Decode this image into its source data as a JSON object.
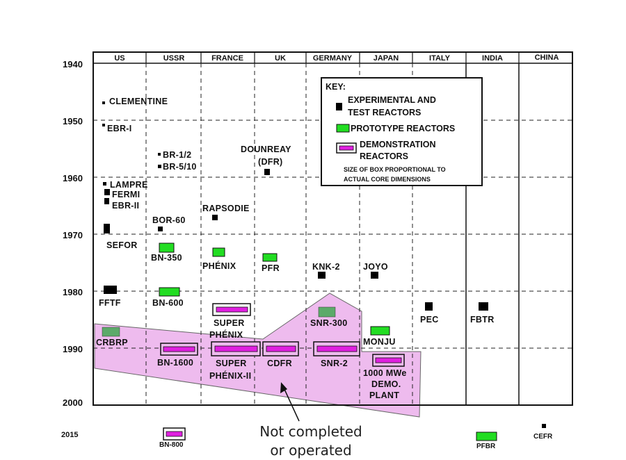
{
  "columns": [
    "US",
    "USSR",
    "FRANCE",
    "UK",
    "GERMANY",
    "JAPAN",
    "ITALY",
    "INDIA",
    "CHINA"
  ],
  "years": [
    "1940",
    "1950",
    "1960",
    "1970",
    "1980",
    "1990",
    "2000"
  ],
  "year_2015": "2015",
  "key": {
    "title": "KEY:",
    "experimental_1": "EXPERIMENTAL AND",
    "experimental_2": "TEST REACTORS",
    "prototype": "PROTOTYPE REACTORS",
    "demo_1": "DEMONSTRATION",
    "demo_2": "REACTORS",
    "size_1": "SIZE OF BOX PROPORTIONAL TO",
    "size_2": "ACTUAL CORE DIMENSIONS"
  },
  "annotation": {
    "line1": "Not completed",
    "line2": "or operated"
  },
  "colors": {
    "experimental": "#000000",
    "prototype": "#22dd22",
    "prototype_gray": "#5caa6a",
    "demonstration": "#e020e0",
    "region_fill": "#eebbee",
    "region_stroke": "#666666"
  },
  "reactors": [
    {
      "name": "CLEMENTINE",
      "country": "US",
      "year": 1946,
      "type": "experimental"
    },
    {
      "name": "EBR-I",
      "country": "US",
      "year": 1951,
      "type": "experimental"
    },
    {
      "name": "LAMPRE",
      "country": "US",
      "year": 1961,
      "type": "experimental"
    },
    {
      "name": "FERMI",
      "country": "US",
      "year": 1963,
      "type": "experimental"
    },
    {
      "name": "EBR-II",
      "country": "US",
      "year": 1964,
      "type": "experimental"
    },
    {
      "name": "SEFOR",
      "country": "US",
      "year": 1969,
      "type": "experimental"
    },
    {
      "name": "FFTF",
      "country": "US",
      "year": 1980,
      "type": "experimental"
    },
    {
      "name": "CRBRP",
      "country": "US",
      "year": 1987,
      "type": "prototype",
      "completed": false
    },
    {
      "name": "BR-1/2",
      "country": "USSR",
      "year": 1956,
      "type": "experimental"
    },
    {
      "name": "BR-5/10",
      "country": "USSR",
      "year": 1958,
      "type": "experimental"
    },
    {
      "name": "BOR-60",
      "country": "USSR",
      "year": 1969,
      "type": "experimental"
    },
    {
      "name": "BN-350",
      "country": "USSR",
      "year": 1972,
      "type": "prototype"
    },
    {
      "name": "BN-600",
      "country": "USSR",
      "year": 1980,
      "type": "prototype"
    },
    {
      "name": "BN-1600",
      "country": "USSR",
      "year": 1990,
      "type": "demonstration",
      "completed": false
    },
    {
      "name": "BN-800",
      "country": "USSR",
      "year": 2015,
      "type": "demonstration"
    },
    {
      "name": "RAPSODIE",
      "country": "FRANCE",
      "year": 1967,
      "type": "experimental"
    },
    {
      "name": "PHÉNIX",
      "country": "FRANCE",
      "year": 1973,
      "type": "prototype"
    },
    {
      "name": "SUPER PHÉNIX",
      "country": "FRANCE",
      "year": 1983,
      "type": "demonstration"
    },
    {
      "name": "SUPER PHÉNIX-II",
      "country": "FRANCE",
      "year": 1990,
      "type": "demonstration",
      "completed": false
    },
    {
      "name": "DOUNREAY (DFR)",
      "country": "UK",
      "year": 1959,
      "type": "experimental"
    },
    {
      "name": "PFR",
      "country": "UK",
      "year": 1974,
      "type": "prototype"
    },
    {
      "name": "CDFR",
      "country": "UK",
      "year": 1990,
      "type": "demonstration",
      "completed": false
    },
    {
      "name": "KNK-2",
      "country": "GERMANY",
      "year": 1977,
      "type": "experimental"
    },
    {
      "name": "SNR-300",
      "country": "GERMANY",
      "year": 1984,
      "type": "prototype",
      "completed": false
    },
    {
      "name": "SNR-2",
      "country": "GERMANY",
      "year": 1990,
      "type": "demonstration",
      "completed": false
    },
    {
      "name": "JOYO",
      "country": "JAPAN",
      "year": 1977,
      "type": "experimental"
    },
    {
      "name": "MONJU",
      "country": "JAPAN",
      "year": 1987,
      "type": "prototype"
    },
    {
      "name": "1000 MWe DEMO. PLANT",
      "country": "JAPAN",
      "year": 1992,
      "type": "demonstration",
      "completed": false
    },
    {
      "name": "PEC",
      "country": "ITALY",
      "year": 1982,
      "type": "experimental"
    },
    {
      "name": "FBTR",
      "country": "INDIA",
      "year": 1982,
      "type": "experimental"
    },
    {
      "name": "PFBR",
      "country": "INDIA",
      "year": 2015,
      "type": "prototype"
    },
    {
      "name": "CEFR",
      "country": "CHINA",
      "year": 2015,
      "type": "experimental"
    }
  ]
}
